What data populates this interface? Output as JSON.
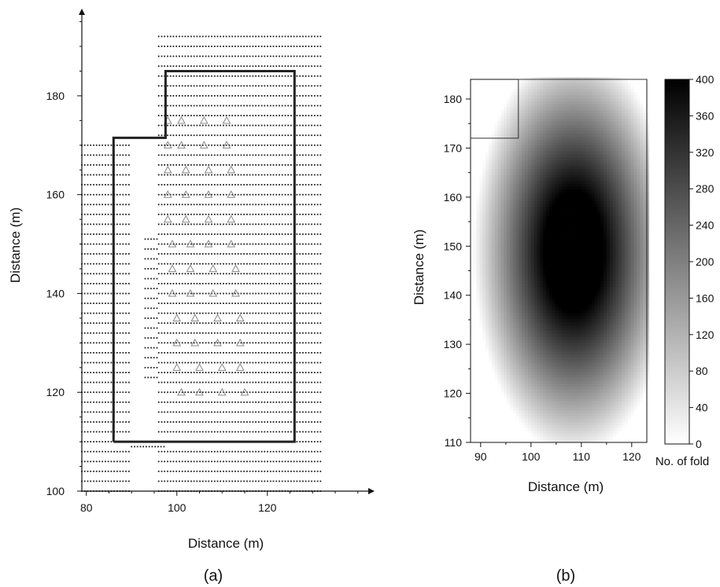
{
  "chart_data": [
    {
      "panel_label": "(a)",
      "type": "scatter",
      "xlabel": "Distance (m)",
      "ylabel": "Distance (m)",
      "xlim": [
        79,
        143
      ],
      "ylim": [
        100,
        197
      ],
      "xticks": [
        80,
        100,
        120
      ],
      "yticks": [
        100,
        120,
        140,
        160,
        180
      ],
      "xtick_labels": [
        "80",
        "100",
        "120"
      ],
      "ytick_labels": [
        "100",
        "120",
        "140",
        "160",
        "180"
      ],
      "series": [
        {
          "marker": "dot",
          "color": "#222222",
          "grid_rows": [
            {
              "y_from": 100,
              "y_to": 171,
              "y_step": 2,
              "x_from": 79,
              "x_to": 90,
              "x_step": 0.65
            },
            {
              "y_from": 109,
              "y_to": 110,
              "y_step": 1,
              "x_from": 90,
              "x_to": 97.5,
              "x_step": 0.65
            },
            {
              "y_from": 100,
              "y_to": 193,
              "y_step": 2,
              "x_from": 96,
              "x_to": 132,
              "x_step": 0.65
            },
            {
              "y_from": 123,
              "y_to": 152,
              "y_step": 2,
              "x_from": 93,
              "x_to": 96,
              "x_step": 0.65
            }
          ]
        },
        {
          "marker": "triangle",
          "color": "#888888",
          "x": [
            98,
            101,
            106,
            111,
            98,
            101,
            106,
            111,
            98,
            102,
            107,
            112,
            98,
            102,
            107,
            112,
            98,
            102,
            107,
            112,
            99,
            103,
            107,
            112,
            99,
            103,
            108,
            113,
            99,
            103,
            108,
            113,
            100,
            104,
            109,
            114,
            100,
            104,
            109,
            114,
            100,
            105,
            110,
            114,
            101,
            105,
            110,
            115
          ],
          "y": [
            175,
            175,
            175,
            175,
            170,
            170,
            170,
            170,
            165,
            165,
            165,
            165,
            160,
            160,
            160,
            160,
            155,
            155,
            155,
            155,
            150,
            150,
            150,
            150,
            145,
            145,
            145,
            145,
            140,
            140,
            140,
            140,
            135,
            135,
            135,
            135,
            130,
            130,
            130,
            130,
            125,
            125,
            125,
            125,
            120,
            120,
            120,
            120
          ]
        }
      ],
      "outline": {
        "x": [
          86,
          86,
          97.5,
          97.5,
          126,
          126,
          86
        ],
        "y": [
          110,
          171.5,
          171.5,
          185,
          185,
          110,
          110
        ]
      }
    },
    {
      "panel_label": "(b)",
      "type": "heatmap",
      "xlabel": "Distance (m)",
      "ylabel": "Distance (m)",
      "xlim": [
        88,
        123
      ],
      "ylim": [
        110,
        184
      ],
      "xticks": [
        90,
        100,
        110,
        120
      ],
      "yticks": [
        110,
        120,
        130,
        140,
        150,
        160,
        170,
        180
      ],
      "xtick_labels": [
        "90",
        "100",
        "110",
        "120"
      ],
      "ytick_labels": [
        "110",
        "120",
        "130",
        "140",
        "150",
        "160",
        "170",
        "180"
      ],
      "fold_field": {
        "peak": 400,
        "core_center": [
          108.5,
          149
        ],
        "core_radius": [
          6,
          12.5
        ],
        "fade_width": 14,
        "shape_exponent": 2
      },
      "outline": {
        "x": [
          88,
          97.5,
          97.5,
          123
        ],
        "y": [
          172,
          172,
          184,
          184
        ]
      },
      "colorbar": {
        "label": "No. of fold",
        "range": [
          0,
          400
        ],
        "ticks": [
          0,
          40,
          80,
          120,
          160,
          200,
          240,
          280,
          320,
          360,
          400
        ],
        "tick_labels": [
          "0",
          "40",
          "80",
          "120",
          "160",
          "200",
          "240",
          "280",
          "320",
          "360",
          "400"
        ],
        "color_low": "#ffffff",
        "color_high": "#000000"
      }
    }
  ]
}
